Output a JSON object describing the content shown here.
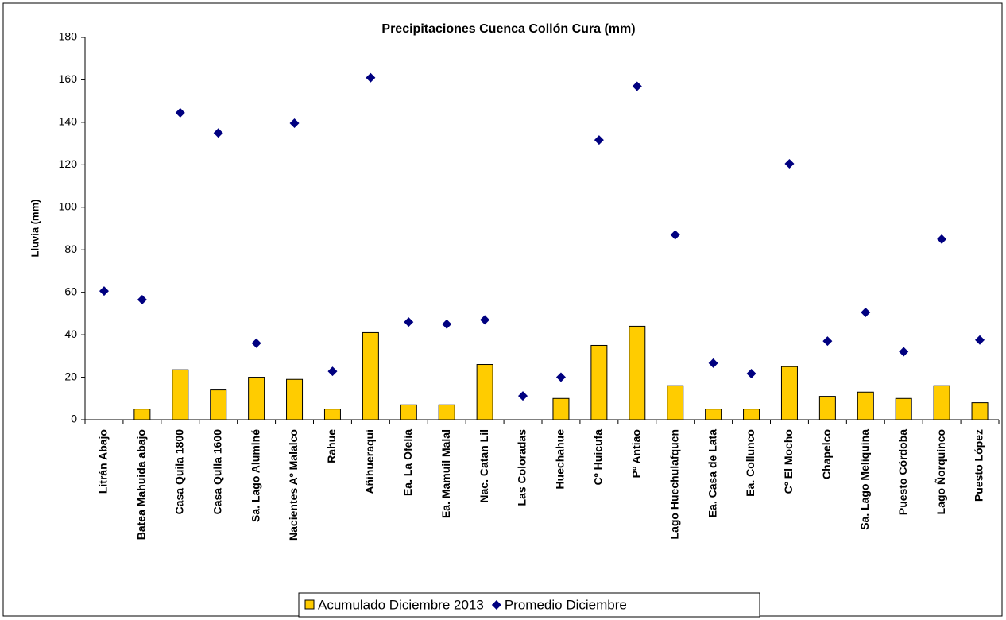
{
  "chart_data": {
    "type": "bar",
    "title": "Precipitaciones Cuenca Collón Cura (mm)",
    "ylabel": "Lluvia (mm)",
    "categories": [
      "Litrán Abajo",
      "Batea Mahuida abajo",
      "Casa Quila 1800",
      "Casa Quila 1600",
      "Sa. Lago Aluminé",
      "Nacientes Aº Malalco",
      "Rahue",
      "Añihueraqui",
      "Ea. La Ofelia",
      "Ea. Mamuil Malal",
      "Nac. Catan Lil",
      "Las Coloradas",
      "Huechahue",
      "Cº Huicufa",
      "Pº Antiao",
      "Lago Huechulafquen",
      "Ea. Casa de Lata",
      "Ea. Collunco",
      "Cº El Mocho",
      "Chapelco",
      "Sa. Lago Meliquina",
      "Puesto Córdoba",
      "Lago Ñorquinco",
      "Puesto López"
    ],
    "series": [
      {
        "name": "Acumulado Diciembre 2013",
        "type": "bar",
        "color": "#ffcc00",
        "values": [
          0,
          5,
          23.5,
          14,
          20,
          19,
          5,
          41,
          7,
          7,
          26,
          0,
          10,
          35,
          44,
          16,
          5,
          5,
          25,
          11,
          13,
          10,
          16,
          8
        ]
      },
      {
        "name": "Promedio Diciembre",
        "type": "scatter",
        "color": "#000080",
        "values": [
          60.6,
          56.5,
          144.5,
          135,
          36,
          139.6,
          22.8,
          161,
          46,
          45,
          47,
          11.2,
          20,
          131.7,
          157,
          87,
          26.6,
          21.7,
          120.5,
          37,
          50.5,
          32,
          85,
          37.5
        ]
      }
    ],
    "ylim": [
      0,
      180
    ],
    "yticks": [
      0,
      20,
      40,
      60,
      80,
      100,
      120,
      140,
      160,
      180
    ],
    "legend": "bottom"
  }
}
